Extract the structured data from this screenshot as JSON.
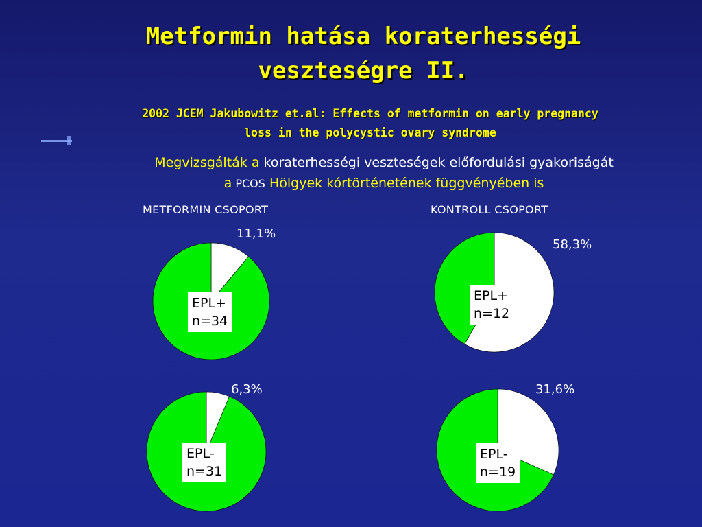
{
  "slide": {
    "title_line1": "Metformin hatása koraterhességi",
    "title_line2": "veszteségre II.",
    "subtitle_line1": "2002 JCEM Jakubowitz et.al: Effects of metformin on early pregnancy",
    "subtitle_line2": "loss in the polycystic ovary syndrome",
    "intro_part1": "Megvizsgálták a",
    "intro_part2": " koraterhességi veszteségek előfordulási gyakoriságát",
    "intro_part3": "a",
    "intro_part4": " PCOS",
    "intro_part5": " Hölgyek kórtörténetének függvényében is",
    "group_left": "METFORMIN CSOPORT",
    "group_right": "KONTROLL CSOPORT"
  },
  "colors": {
    "background": "#1b2692",
    "title": "#ffff00",
    "slice_green": "#00ee00",
    "slice_white": "#ffffff"
  },
  "chart_data": [
    {
      "type": "pie",
      "group": "METFORMIN CSOPORT",
      "label_line1": "EPL+",
      "label_line2": "n=34",
      "slices": [
        {
          "value": 11.1,
          "color": "#ffffff"
        },
        {
          "value": 88.9,
          "color": "#00ee00"
        }
      ],
      "annotation": "11,1%"
    },
    {
      "type": "pie",
      "group": "KONTROLL CSOPORT",
      "label_line1": "EPL+",
      "label_line2": "n=12",
      "slices": [
        {
          "value": 58.3,
          "color": "#ffffff"
        },
        {
          "value": 41.7,
          "color": "#00ee00"
        }
      ],
      "annotation": "58,3%"
    },
    {
      "type": "pie",
      "group": "METFORMIN CSOPORT",
      "label_line1": "EPL-",
      "label_line2": "n=31",
      "slices": [
        {
          "value": 6.3,
          "color": "#ffffff"
        },
        {
          "value": 93.7,
          "color": "#00ee00"
        }
      ],
      "annotation": "6,3%"
    },
    {
      "type": "pie",
      "group": "KONTROLL CSOPORT",
      "label_line1": "EPL-",
      "label_line2": "n=19",
      "slices": [
        {
          "value": 31.6,
          "color": "#ffffff"
        },
        {
          "value": 68.4,
          "color": "#00ee00"
        }
      ],
      "annotation": "31,6%"
    }
  ]
}
